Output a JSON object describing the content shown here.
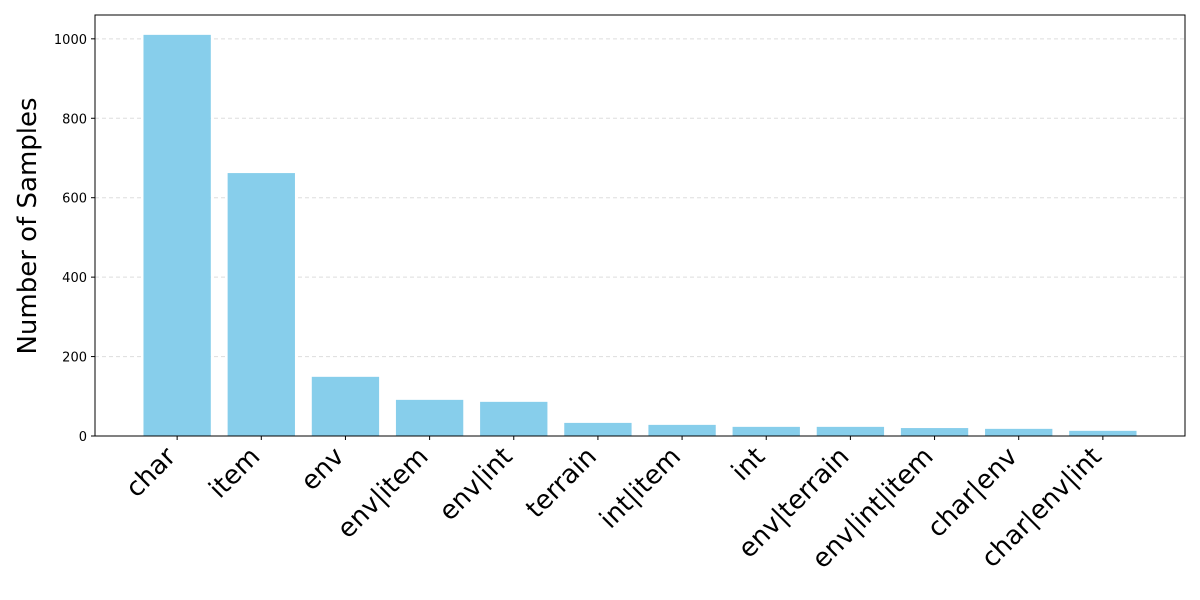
{
  "chart_data": {
    "type": "bar",
    "y_label": "Number of Samples",
    "categories": [
      "char",
      "item",
      "env",
      "env|item",
      "env|int",
      "terrain",
      "int|item",
      "int",
      "env|terrain",
      "env|int|item",
      "char|env",
      "char|env|int"
    ],
    "values": [
      1010,
      662,
      149,
      91,
      86,
      33,
      28,
      23,
      23,
      20,
      18,
      13
    ],
    "color": "#87ceeb",
    "ylim": [
      0,
      1060
    ],
    "yticks": [
      0,
      200,
      400,
      600,
      800,
      1000
    ],
    "grid": true
  }
}
